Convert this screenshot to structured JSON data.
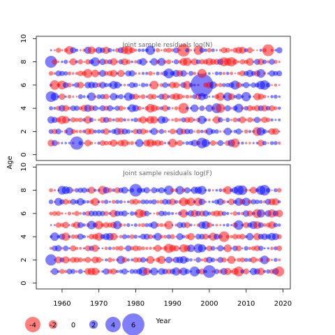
{
  "chart_data": {
    "type": "scatter",
    "subtype": "bubble-residuals",
    "shared_x": {
      "label": "Year",
      "ticks": [
        1960,
        1970,
        1980,
        1990,
        2000,
        2010,
        2020
      ],
      "tick_labels": [
        "1960",
        "1970",
        "1980",
        "1990",
        "2000",
        "2010",
        "2020"
      ],
      "range": [
        1953,
        2022
      ]
    },
    "y_label": "Age",
    "colors": {
      "negative": "#ff0000",
      "positive": "#0000ff",
      "opacity": 0.5
    },
    "panels": [
      {
        "id": "top",
        "title": "Joint sample residuals log(N)",
        "ylim": [
          -0.5,
          10.2
        ],
        "yticks": [
          0,
          2,
          4,
          6,
          8,
          10
        ],
        "ytick_labels": [
          "0",
          "2",
          "4",
          "6",
          "8",
          "10"
        ],
        "ages": [
          1,
          2,
          3,
          4,
          5,
          6,
          7,
          8,
          9
        ],
        "years": [
          1957,
          2019
        ],
        "seed": 1337,
        "highlights": [
          {
            "year": 1998,
            "age": 6,
            "value": 6.2
          },
          {
            "year": 1964,
            "age": 1,
            "value": 3.4
          },
          {
            "year": 1993,
            "age": 9,
            "value": -3.2
          },
          {
            "year": 2016,
            "age": 9,
            "value": -3.0
          },
          {
            "year": 1957,
            "age": 8,
            "value": 3.0
          },
          {
            "year": 1957,
            "age": 5,
            "value": 2.6
          },
          {
            "year": 1998,
            "age": 1,
            "value": 2.6
          },
          {
            "year": 1993,
            "age": 4,
            "value": -2.6
          },
          {
            "year": 2002,
            "age": 4,
            "value": 2.4
          },
          {
            "year": 1989,
            "age": 7,
            "value": 2.4
          }
        ]
      },
      {
        "id": "bottom",
        "title": "Joint sample residuals log(F)",
        "ylim": [
          -0.5,
          10.2
        ],
        "yticks": [
          0,
          2,
          4,
          6,
          8,
          10
        ],
        "ytick_labels": [
          "0",
          "2",
          "4",
          "6",
          "8",
          "10"
        ],
        "ages": [
          1,
          2,
          3,
          4,
          5,
          6,
          7,
          8
        ],
        "years": [
          1957,
          2019
        ],
        "seed": 4242,
        "highlights": [
          {
            "year": 1980,
            "age": 8,
            "value": 3.2
          },
          {
            "year": 2000,
            "age": 1,
            "value": 3.2
          },
          {
            "year": 1957,
            "age": 2,
            "value": 2.8
          },
          {
            "year": 2004,
            "age": 4,
            "value": -2.6
          },
          {
            "year": 2015,
            "age": 8,
            "value": 2.6
          },
          {
            "year": 2019,
            "age": 1,
            "value": -2.4
          },
          {
            "year": 1996,
            "age": 1,
            "value": 2.4
          },
          {
            "year": 2008,
            "age": 1,
            "value": -2.4
          },
          {
            "year": 1989,
            "age": 3,
            "value": -2.2
          },
          {
            "year": 1997,
            "age": 3,
            "value": 2.2
          }
        ]
      }
    ],
    "legend": {
      "values": [
        -4,
        -2,
        0,
        2,
        4,
        6
      ],
      "labels": [
        "-4",
        "-2",
        "0",
        "2",
        "4",
        "6"
      ],
      "placement": "bottom-left"
    }
  }
}
